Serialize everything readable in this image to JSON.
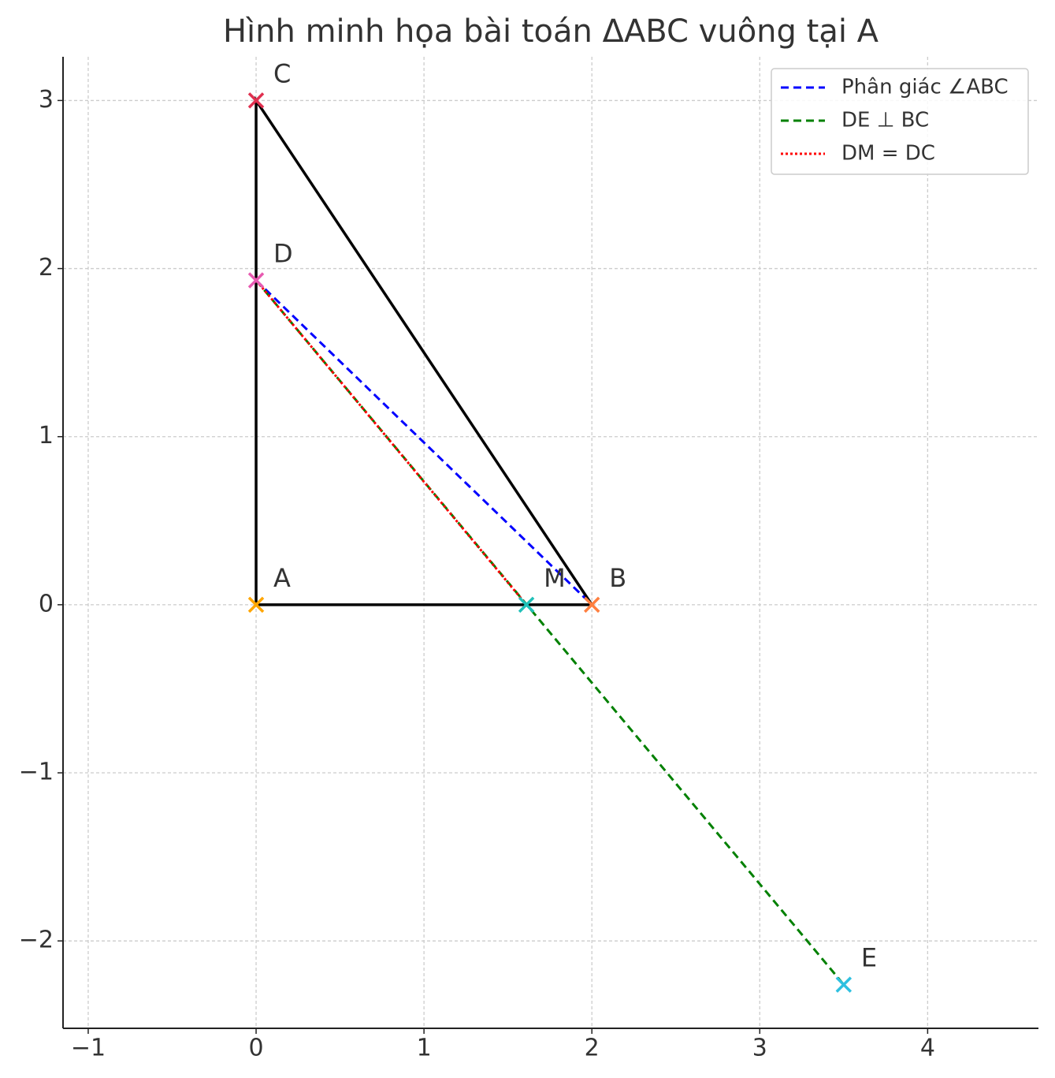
{
  "chart_data": {
    "type": "line",
    "title": "Hình minh họa bài toán ΔABC vuông tại A",
    "xlim": [
      -1.15,
      4.66
    ],
    "ylim": [
      -2.52,
      3.26
    ],
    "xticks": [
      {
        "value": -1,
        "label": "−1"
      },
      0,
      1,
      2,
      3,
      4
    ],
    "yticks": [
      {
        "value": -2,
        "label": "−2"
      },
      {
        "value": -1,
        "label": "−1"
      },
      0,
      1,
      2,
      3
    ],
    "grid": true,
    "legend": "upper right",
    "triangle": {
      "color": "#000000",
      "x": [
        0,
        2,
        0,
        0
      ],
      "y": [
        0,
        0,
        3,
        0
      ]
    },
    "series": [
      {
        "name": "Phân giác ∠ABC",
        "color": "#0000ff",
        "style": "dashed",
        "x": [
          0,
          2
        ],
        "y": [
          1.93,
          0
        ]
      },
      {
        "name": "DE ⊥ BC",
        "color": "#008000",
        "style": "dashed",
        "x": [
          0,
          3.5
        ],
        "y": [
          1.93,
          -2.26
        ]
      },
      {
        "name": "DM = DC",
        "color": "#ff0000",
        "style": "dotted",
        "x": [
          0,
          1.61
        ],
        "y": [
          1.93,
          0
        ]
      }
    ],
    "points": [
      {
        "name": "A",
        "x": 0,
        "y": 0,
        "color": "#ffa500"
      },
      {
        "name": "B",
        "x": 2,
        "y": 0,
        "color": "#ff7f3f"
      },
      {
        "name": "C",
        "x": 0,
        "y": 3,
        "color": "#e0304f"
      },
      {
        "name": "D",
        "x": 0,
        "y": 1.93,
        "color": "#e75ab0"
      },
      {
        "name": "M",
        "x": 1.61,
        "y": 0,
        "color": "#20c0b8"
      },
      {
        "name": "E",
        "x": 3.5,
        "y": -2.26,
        "color": "#2ec0e0"
      }
    ]
  }
}
